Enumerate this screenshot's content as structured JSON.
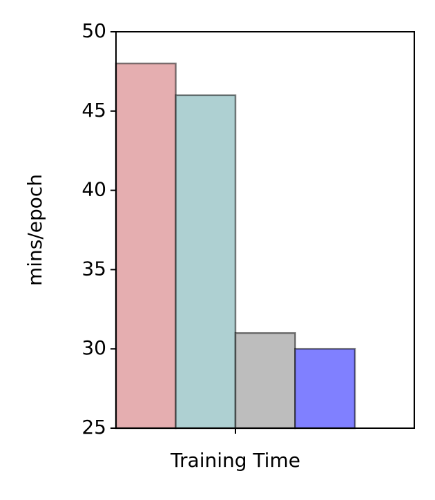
{
  "chart_data": {
    "type": "bar",
    "y_label": "mins/epoch",
    "categories": [
      "Training Time"
    ],
    "series": [
      {
        "color": "#e5aeb0",
        "values": [
          48
        ]
      },
      {
        "color": "#aed0d2",
        "values": [
          46
        ]
      },
      {
        "color": "#bdbdbd",
        "values": [
          31
        ]
      },
      {
        "color": "#8080ff",
        "values": [
          30
        ]
      }
    ],
    "ylim": [
      25,
      50
    ],
    "yticks": [
      25,
      30,
      35,
      40,
      45,
      50
    ],
    "grid": false
  }
}
